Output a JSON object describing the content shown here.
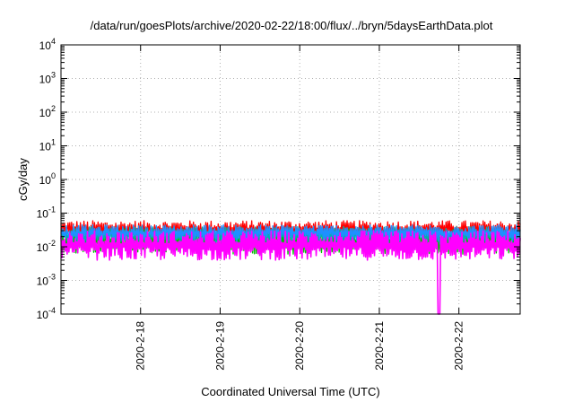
{
  "chart_data": {
    "type": "line",
    "title": "/data/run/goesPlots/archive/2020-02-22/18:00/flux/../bryn/5daysEarthData.plot",
    "xlabel": "Coordinated Universal Time (UTC)",
    "ylabel": "cGy/day",
    "yscale": "log",
    "ylim": [
      0.0001,
      10000
    ],
    "xlim": [
      0.0,
      5.77
    ],
    "grid": true,
    "y_ticks": [
      {
        "base": "10",
        "exp": "4",
        "value": 10000
      },
      {
        "base": "10",
        "exp": "3",
        "value": 1000
      },
      {
        "base": "10",
        "exp": "2",
        "value": 100
      },
      {
        "base": "10",
        "exp": "1",
        "value": 10
      },
      {
        "base": "10",
        "exp": "0",
        "value": 1
      },
      {
        "base": "10",
        "exp": "-1",
        "value": 0.1
      },
      {
        "base": "10",
        "exp": "-2",
        "value": 0.01
      },
      {
        "base": "10",
        "exp": "-3",
        "value": 0.001
      },
      {
        "base": "10",
        "exp": "-4",
        "value": 0.0001
      }
    ],
    "x_ticks": [
      {
        "label": "2020-2-18",
        "value": 1
      },
      {
        "label": "2020-2-19",
        "value": 2
      },
      {
        "label": "2020-2-20",
        "value": 3
      },
      {
        "label": "2020-2-21",
        "value": 4
      },
      {
        "label": "2020-2-22",
        "value": 5
      }
    ],
    "series": [
      {
        "color": "#ff0000",
        "y_low": 0.018,
        "y_high": 0.06
      },
      {
        "color": "#00c000",
        "y_low": 0.006,
        "y_high": 0.035
      },
      {
        "color": "#00b0b0",
        "y_low": 0.012,
        "y_high": 0.04
      },
      {
        "color": "#1e90ff",
        "y_low": 0.015,
        "y_high": 0.045
      },
      {
        "color": "#ff00ff",
        "y_low": 0.004,
        "y_high": 0.03,
        "dropout_at": 4.75,
        "dropout_value": 0.0001
      }
    ]
  }
}
